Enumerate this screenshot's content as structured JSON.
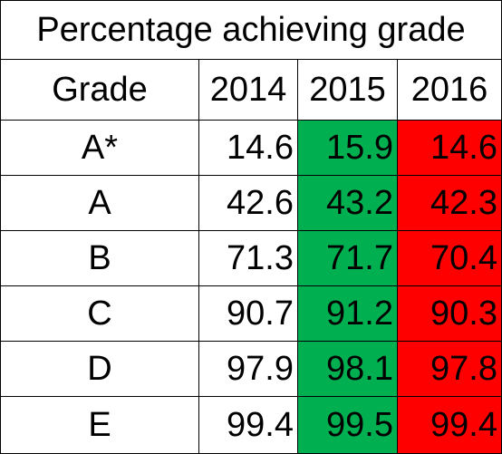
{
  "chart_data": {
    "type": "table",
    "title": "Percentage achieving grade",
    "columns": [
      "Grade",
      "2014",
      "2015",
      "2016"
    ],
    "rows": [
      {
        "grade": "A*",
        "values": [
          "14.6",
          "15.9",
          "14.6"
        ]
      },
      {
        "grade": "A",
        "values": [
          "42.6",
          "43.2",
          "42.3"
        ]
      },
      {
        "grade": "B",
        "values": [
          "71.3",
          "71.7",
          "70.4"
        ]
      },
      {
        "grade": "C",
        "values": [
          "90.7",
          "91.2",
          "90.3"
        ]
      },
      {
        "grade": "D",
        "values": [
          "97.9",
          "98.1",
          "97.8"
        ]
      },
      {
        "grade": "E",
        "values": [
          "99.4",
          "99.5",
          "99.4"
        ]
      }
    ],
    "column_fill_colors": [
      "",
      "",
      "#00b050",
      "#ff0000"
    ]
  }
}
